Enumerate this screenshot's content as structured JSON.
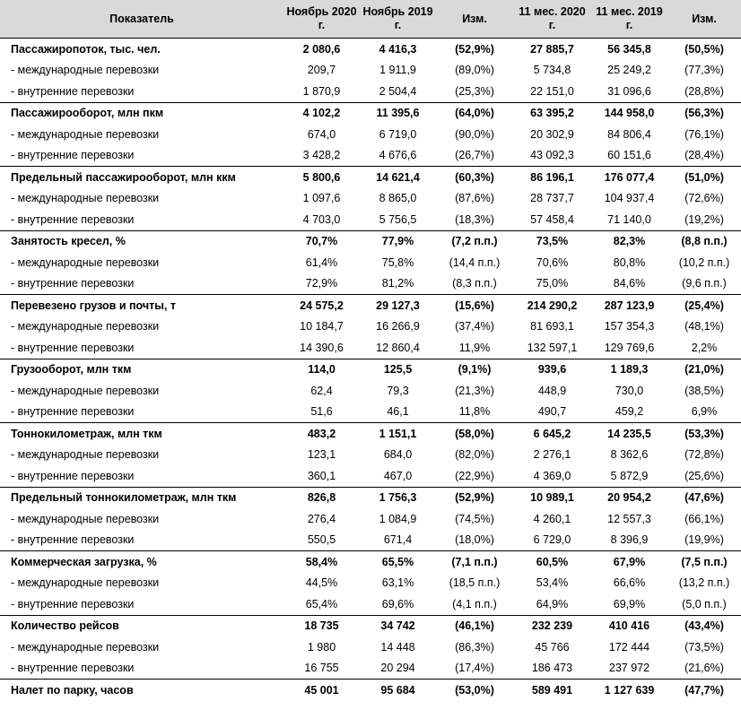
{
  "headers": [
    "Показатель",
    "Ноябрь 2020 г.",
    "Ноябрь 2019 г.",
    "Изм.",
    "11 мес. 2020 г.",
    "11 мес. 2019 г.",
    "Изм."
  ],
  "rows": [
    {
      "type": "main",
      "cells": [
        "Пассажиропоток, тыс. чел.",
        "2 080,6",
        "4 416,3",
        "(52,9%)",
        "27 885,7",
        "56 345,8",
        "(50,5%)"
      ]
    },
    {
      "type": "sub",
      "cells": [
        "- международные перевозки",
        "209,7",
        "1 911,9",
        "(89,0%)",
        "5 734,8",
        "25 249,2",
        "(77,3%)"
      ]
    },
    {
      "type": "sub",
      "cells": [
        "- внутренние перевозки",
        "1 870,9",
        "2 504,4",
        "(25,3%)",
        "22 151,0",
        "31 096,6",
        "(28,8%)"
      ]
    },
    {
      "type": "main",
      "cells": [
        "Пассажирооборот, млн пкм",
        "4 102,2",
        "11 395,6",
        "(64,0%)",
        "63 395,2",
        "144 958,0",
        "(56,3%)"
      ]
    },
    {
      "type": "sub",
      "cells": [
        "- международные перевозки",
        "674,0",
        "6 719,0",
        "(90,0%)",
        "20 302,9",
        "84 806,4",
        "(76,1%)"
      ]
    },
    {
      "type": "sub",
      "cells": [
        "- внутренние перевозки",
        "3 428,2",
        "4 676,6",
        "(26,7%)",
        "43 092,3",
        "60 151,6",
        "(28,4%)"
      ]
    },
    {
      "type": "main",
      "cells": [
        "Предельный пассажирооборот, млн ккм",
        "5 800,6",
        "14 621,4",
        "(60,3%)",
        "86 196,1",
        "176 077,4",
        "(51,0%)"
      ]
    },
    {
      "type": "sub",
      "cells": [
        "- международные перевозки",
        "1 097,6",
        "8 865,0",
        "(87,6%)",
        "28 737,7",
        "104 937,4",
        "(72,6%)"
      ]
    },
    {
      "type": "sub",
      "cells": [
        "- внутренние перевозки",
        "4 703,0",
        "5 756,5",
        "(18,3%)",
        "57 458,4",
        "71 140,0",
        "(19,2%)"
      ]
    },
    {
      "type": "main",
      "cells": [
        "Занятость кресел, %",
        "70,7%",
        "77,9%",
        "(7,2 п.п.)",
        "73,5%",
        "82,3%",
        "(8,8 п.п.)"
      ]
    },
    {
      "type": "sub",
      "cells": [
        "- международные перевозки",
        "61,4%",
        "75,8%",
        "(14,4 п.п.)",
        "70,6%",
        "80,8%",
        "(10,2 п.п.)"
      ]
    },
    {
      "type": "sub",
      "cells": [
        "- внутренние перевозки",
        "72,9%",
        "81,2%",
        "(8,3 п.п.)",
        "75,0%",
        "84,6%",
        "(9,6 п.п.)"
      ]
    },
    {
      "type": "main",
      "cells": [
        "Перевезено грузов и почты, т",
        "24 575,2",
        "29 127,3",
        "(15,6%)",
        "214 290,2",
        "287 123,9",
        "(25,4%)"
      ]
    },
    {
      "type": "sub",
      "cells": [
        "- международные перевозки",
        "10 184,7",
        "16 266,9",
        "(37,4%)",
        "81 693,1",
        "157 354,3",
        "(48,1%)"
      ]
    },
    {
      "type": "sub",
      "cells": [
        "- внутренние перевозки",
        "14 390,6",
        "12 860,4",
        "11,9%",
        "132 597,1",
        "129 769,6",
        "2,2%"
      ]
    },
    {
      "type": "main",
      "cells": [
        "Грузооборот, млн ткм",
        "114,0",
        "125,5",
        "(9,1%)",
        "939,6",
        "1 189,3",
        "(21,0%)"
      ]
    },
    {
      "type": "sub",
      "cells": [
        "- международные перевозки",
        "62,4",
        "79,3",
        "(21,3%)",
        "448,9",
        "730,0",
        "(38,5%)"
      ]
    },
    {
      "type": "sub",
      "cells": [
        "- внутренние перевозки",
        "51,6",
        "46,1",
        "11,8%",
        "490,7",
        "459,2",
        "6,9%"
      ]
    },
    {
      "type": "main",
      "cells": [
        "Тоннокилометраж, млн ткм",
        "483,2",
        "1 151,1",
        "(58,0%)",
        "6 645,2",
        "14 235,5",
        "(53,3%)"
      ]
    },
    {
      "type": "sub",
      "cells": [
        "- международные перевозки",
        "123,1",
        "684,0",
        "(82,0%)",
        "2 276,1",
        "8 362,6",
        "(72,8%)"
      ]
    },
    {
      "type": "sub",
      "cells": [
        "- внутренние перевозки",
        "360,1",
        "467,0",
        "(22,9%)",
        "4 369,0",
        "5 872,9",
        "(25,6%)"
      ]
    },
    {
      "type": "main",
      "cells": [
        "Предельный тоннокилометраж, млн ткм",
        "826,8",
        "1 756,3",
        "(52,9%)",
        "10 989,1",
        "20 954,2",
        "(47,6%)"
      ]
    },
    {
      "type": "sub",
      "cells": [
        "- международные перевозки",
        "276,4",
        "1 084,9",
        "(74,5%)",
        "4 260,1",
        "12 557,3",
        "(66,1%)"
      ]
    },
    {
      "type": "sub",
      "cells": [
        "- внутренние перевозки",
        "550,5",
        "671,4",
        "(18,0%)",
        "6 729,0",
        "8 396,9",
        "(19,9%)"
      ]
    },
    {
      "type": "main",
      "cells": [
        "Коммерческая загрузка, %",
        "58,4%",
        "65,5%",
        "(7,1 п.п.)",
        "60,5%",
        "67,9%",
        "(7,5 п.п.)"
      ]
    },
    {
      "type": "sub",
      "cells": [
        "- международные перевозки",
        "44,5%",
        "63,1%",
        "(18,5 п.п.)",
        "53,4%",
        "66,6%",
        "(13,2 п.п.)"
      ]
    },
    {
      "type": "sub",
      "cells": [
        "- внутренние перевозки",
        "65,4%",
        "69,6%",
        "(4,1 п.п.)",
        "64,9%",
        "69,9%",
        "(5,0 п.п.)"
      ]
    },
    {
      "type": "main",
      "cells": [
        "Количество рейсов",
        "18 735",
        "34 742",
        "(46,1%)",
        "232 239",
        "410 416",
        "(43,4%)"
      ]
    },
    {
      "type": "sub",
      "cells": [
        "- международные перевозки",
        "1 980",
        "14 448",
        "(86,3%)",
        "45 766",
        "172 444",
        "(73,5%)"
      ]
    },
    {
      "type": "sub",
      "cells": [
        "- внутренние перевозки",
        "16 755",
        "20 294",
        "(17,4%)",
        "186 473",
        "237 972",
        "(21,6%)"
      ]
    },
    {
      "type": "main",
      "cells": [
        "Налет по парку, часов",
        "45 001",
        "95 684",
        "(53,0%)",
        "589 491",
        "1 127 639",
        "(47,7%)"
      ]
    }
  ]
}
